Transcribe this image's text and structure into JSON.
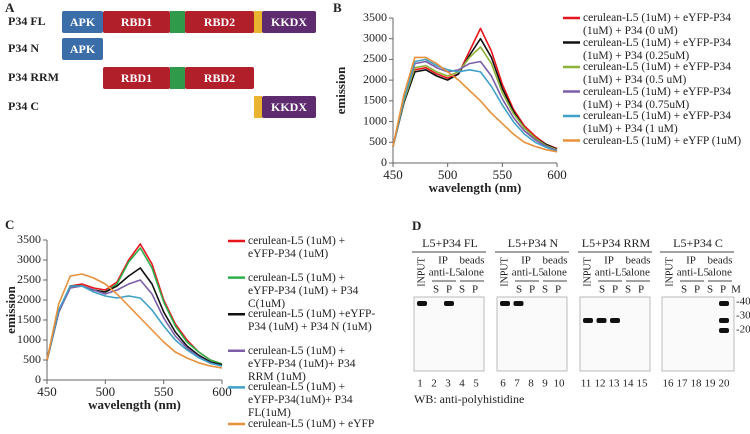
{
  "panel_labels": [
    "A",
    "B",
    "C",
    "D"
  ],
  "domains": {
    "rows": [
      {
        "label": "P34 FL",
        "parts": [
          "APK",
          "RBD1",
          "RBD2",
          "KKDX"
        ]
      },
      {
        "label": "P34 N",
        "parts": [
          "APK"
        ]
      },
      {
        "label": "P34 RRM",
        "parts": [
          "RBD1",
          "RBD2"
        ]
      },
      {
        "label": "P34 C",
        "parts": [
          "KKDX"
        ]
      }
    ]
  },
  "chart_data": [
    {
      "type": "line",
      "x_label": "wavelength (nm)",
      "y_label": "emission",
      "x": [
        450,
        460,
        470,
        480,
        490,
        500,
        510,
        520,
        530,
        540,
        550,
        560,
        570,
        580,
        590,
        600
      ],
      "xlim": [
        450,
        600
      ],
      "xticks": [
        450,
        500,
        550,
        600
      ],
      "ylim": [
        0,
        3500
      ],
      "yticks": [
        0,
        500,
        1000,
        1500,
        2000,
        2500,
        3000,
        3500
      ],
      "series": [
        {
          "name": "cerulean-L5 (1uM) + eYFP-P34 (1uM) + P34 (0 uM)",
          "color": "#e8141c",
          "values": [
            400,
            1500,
            2250,
            2300,
            2150,
            2050,
            2150,
            2700,
            3250,
            2700,
            1900,
            1300,
            900,
            650,
            450,
            350
          ]
        },
        {
          "name": "cerulean-L5 (1uM) + eYFP-P34 (1uM) + P34 (0.25uM)",
          "color": "#111111",
          "values": [
            400,
            1450,
            2200,
            2250,
            2100,
            2000,
            2150,
            2600,
            3000,
            2550,
            1800,
            1250,
            850,
            600,
            450,
            330
          ]
        },
        {
          "name": "cerulean-L5 (1uM) + eYFP-P34 (1uM) + P34 (0.5 uM)",
          "color": "#8db13a",
          "values": [
            400,
            1500,
            2300,
            2350,
            2200,
            2100,
            2200,
            2550,
            2800,
            2400,
            1700,
            1200,
            850,
            600,
            420,
            320
          ]
        },
        {
          "name": "cerulean-L5 (1uM) + eYFP-P34 (1uM) + P34 (0.75uM)",
          "color": "#7b5ea7",
          "values": [
            400,
            1550,
            2400,
            2450,
            2300,
            2200,
            2250,
            2400,
            2450,
            2100,
            1550,
            1100,
            780,
            560,
            400,
            300
          ]
        },
        {
          "name": "cerulean-L5 (1uM) + eYFP-P34 (1uM) + P34 (1 uM)",
          "color": "#3fa0c8",
          "values": [
            400,
            1550,
            2450,
            2500,
            2350,
            2250,
            2200,
            2250,
            2200,
            1850,
            1400,
            1000,
            700,
            500,
            380,
            280
          ]
        },
        {
          "name": "cerulean-L5 (1uM) + eYFP (1uM)",
          "color": "#e8903a",
          "values": [
            400,
            1650,
            2550,
            2550,
            2400,
            2200,
            2000,
            1750,
            1500,
            1200,
            950,
            700,
            500,
            400,
            320,
            270
          ]
        }
      ]
    },
    {
      "type": "line",
      "x_label": "wavelength (nm)",
      "y_label": "emission",
      "x": [
        450,
        460,
        470,
        480,
        490,
        500,
        510,
        520,
        530,
        540,
        550,
        560,
        570,
        580,
        590,
        600
      ],
      "xlim": [
        450,
        600
      ],
      "xticks": [
        450,
        500,
        550,
        600
      ],
      "ylim": [
        0,
        3500
      ],
      "yticks": [
        0,
        500,
        1000,
        1500,
        2000,
        2500,
        3000,
        3500
      ],
      "series": [
        {
          "name": "cerulean-L5 (1uM) + eYFP-P34 (1uM)",
          "color": "#e8141c",
          "values": [
            500,
            1700,
            2350,
            2400,
            2300,
            2250,
            2450,
            3000,
            3400,
            2900,
            2000,
            1400,
            1000,
            700,
            500,
            400
          ]
        },
        {
          "name": "cerulean-L5 (1uM) + eYFP-P34 (1uM) + P34 C(1uM)",
          "color": "#2db04b",
          "values": [
            500,
            1700,
            2350,
            2350,
            2250,
            2200,
            2400,
            2950,
            3300,
            2800,
            1950,
            1350,
            950,
            700,
            500,
            400
          ]
        },
        {
          "name": "cerulean-L5 (1uM) +eYFP-P34 (1uM) + P34 N (1uM)",
          "color": "#111111",
          "values": [
            500,
            1700,
            2350,
            2350,
            2250,
            2200,
            2350,
            2600,
            2800,
            2400,
            1700,
            1200,
            850,
            620,
            450,
            380
          ]
        },
        {
          "name": "cerulean-L5 (1uM) + eYFP-P34 (1uM)+ P34 RRM (1uM)",
          "color": "#7b5ea7",
          "values": [
            500,
            1700,
            2300,
            2350,
            2250,
            2150,
            2250,
            2400,
            2500,
            2150,
            1550,
            1100,
            800,
            580,
            420,
            350
          ]
        },
        {
          "name": "cerulean-L5 (1uM) + eYFP-P34(1uM)+ P34 FL(1uM)",
          "color": "#3fa0c8",
          "values": [
            500,
            1750,
            2350,
            2350,
            2200,
            2100,
            2050,
            2100,
            2050,
            1750,
            1350,
            1000,
            750,
            560,
            420,
            350
          ]
        },
        {
          "name": "cerulean-L5 (1uM) + eYFP",
          "color": "#e8903a",
          "values": [
            500,
            1900,
            2600,
            2650,
            2550,
            2400,
            2150,
            1850,
            1550,
            1250,
            950,
            700,
            550,
            430,
            350,
            300
          ]
        }
      ]
    }
  ],
  "blot": {
    "groups": [
      {
        "title": "L5+P34 FL",
        "input": "INPUT",
        "ip": [
          "IP",
          "anti-L5"
        ],
        "beads": [
          "beads",
          "alone"
        ],
        "sub": [
          "S",
          "P",
          "S",
          "P"
        ],
        "lanes": [
          "1",
          "2",
          "3",
          "4",
          "5"
        ]
      },
      {
        "title": "L5+P34 N",
        "input": "INPUT",
        "ip": [
          "IP",
          "anti-L5"
        ],
        "beads": [
          "beads",
          "alone"
        ],
        "sub": [
          "S",
          "P",
          "S",
          "P"
        ],
        "lanes": [
          "6",
          "7",
          "8",
          "9",
          "10"
        ]
      },
      {
        "title": "L5+P34 RRM",
        "input": "INPUT",
        "ip": [
          "IP",
          "anti-L5"
        ],
        "beads": [
          "beads",
          "alone"
        ],
        "sub": [
          "S",
          "P",
          "S",
          "P"
        ],
        "lanes": [
          "11",
          "12",
          "13",
          "14",
          "15"
        ]
      },
      {
        "title": "L5+P34 C",
        "input": "INPUT",
        "ip": [
          "IP",
          "anti-L5"
        ],
        "beads": [
          "beads",
          "alone"
        ],
        "sub": [
          "S",
          "P",
          "S",
          "P",
          "M"
        ],
        "lanes": [
          "16",
          "17",
          "18",
          "19",
          "20"
        ]
      }
    ],
    "markers": [
      "-40",
      "-30",
      "-20"
    ],
    "footer": "WB: anti-polyhistidine"
  }
}
